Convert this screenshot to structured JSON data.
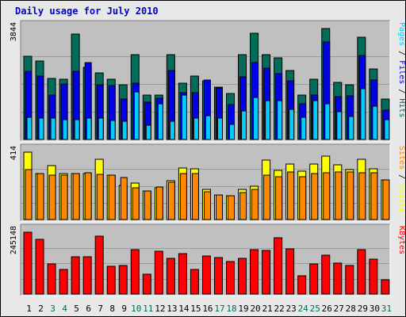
{
  "title": "Daily usage for July 2010",
  "colors": {
    "hits": "#006c5a",
    "files": "#0000e6",
    "pages": "#00ccff",
    "visits": "#ffff00",
    "sites": "#ff8800",
    "kbytes": "#ff0000",
    "day_label": "#000000",
    "weekend_label": "#006c5a",
    "panel_bg": "#c0c0c0"
  },
  "chart_data": {
    "type": "bar",
    "x": [
      "1",
      "2",
      "3",
      "4",
      "5",
      "6",
      "7",
      "8",
      "9",
      "10",
      "11",
      "12",
      "13",
      "14",
      "15",
      "16",
      "17",
      "18",
      "19",
      "20",
      "21",
      "22",
      "23",
      "24",
      "25",
      "26",
      "27",
      "28",
      "29",
      "30",
      "31"
    ],
    "weekend_days": [
      "3",
      "4",
      "10",
      "11",
      "17",
      "18",
      "24",
      "25",
      "31"
    ],
    "panels": [
      {
        "name": "Pages / Files / Hits",
        "ymax_label": "3844",
        "ymax": 3844,
        "legend": [
          {
            "text": "Pages",
            "color_key": "pages"
          },
          {
            "text": " / ",
            "color_key": "day_label"
          },
          {
            "text": "Files",
            "color_key": "files"
          },
          {
            "text": " / ",
            "color_key": "day_label"
          },
          {
            "text": "Hits",
            "color_key": "hits"
          }
        ],
        "series": [
          {
            "name": "Hits",
            "color_key": "hits",
            "values": [
              2874,
              2724,
              2124,
              2074,
              3644,
              2499,
              2299,
              2099,
              1899,
              2949,
              1549,
              1549,
              2949,
              1949,
              2199,
              2024,
              1824,
              1599,
              2949,
              3674,
              2949,
              2824,
              2399,
              1549,
              2074,
              3844,
              1974,
              1899,
              3544,
              2449,
              1399
            ]
          },
          {
            "name": "Files",
            "color_key": "files",
            "values": [
              2349,
              2199,
              1524,
              1924,
              2349,
              2674,
              1899,
              1874,
              1399,
              1949,
              1299,
              1424,
              2399,
              1624,
              1624,
              2049,
              1774,
              1199,
              2174,
              2674,
              2474,
              2274,
              2024,
              1249,
              1524,
              3374,
              1474,
              1499,
              2924,
              2049,
              1024
            ]
          },
          {
            "name": "Pages",
            "color_key": "pages",
            "values": [
              774,
              749,
              749,
              699,
              674,
              749,
              749,
              649,
              624,
              1649,
              499,
              1249,
              624,
              1549,
              749,
              824,
              749,
              524,
              999,
              1449,
              1349,
              1349,
              1049,
              774,
              1349,
              1249,
              949,
              799,
              1749,
              1149,
              674
            ]
          }
        ]
      },
      {
        "name": "Sites / Visits",
        "ymax_label": "414",
        "ymax": 414,
        "legend": [
          {
            "text": "Sites",
            "color_key": "sites"
          },
          {
            "text": " / ",
            "color_key": "day_label"
          },
          {
            "text": "Visits",
            "color_key": "visits"
          }
        ],
        "series": [
          {
            "name": "Visits",
            "color_key": "visits",
            "values": [
              414,
              284,
              329,
              284,
              284,
              284,
              369,
              274,
              209,
              224,
              174,
              194,
              239,
              319,
              314,
              184,
              149,
              144,
              184,
              204,
              364,
              304,
              339,
              299,
              339,
              389,
              334,
              309,
              369,
              314,
              244
            ]
          },
          {
            "name": "Sites",
            "color_key": "sites",
            "values": [
              309,
              284,
              274,
              274,
              284,
              289,
              279,
              274,
              259,
              194,
              174,
              199,
              229,
              284,
              284,
              169,
              149,
              144,
              164,
              184,
              274,
              264,
              294,
              264,
              284,
              289,
              294,
              294,
              289,
              289,
              244
            ]
          }
        ]
      },
      {
        "name": "KBytes",
        "ymax_label": "245148",
        "ymax": 245148,
        "legend": [
          {
            "text": "KBytes",
            "color_key": "kbytes"
          }
        ],
        "series": [
          {
            "name": "KBytes",
            "color_key": "kbytes",
            "values": [
              245148,
              218000,
              118000,
              96000,
              148000,
              148000,
              231000,
              110000,
              112000,
              177000,
              80000,
              171000,
              142000,
              160000,
              99000,
              150000,
              144000,
              128000,
              143000,
              175000,
              173000,
              222000,
              180000,
              73000,
              120000,
              155000,
              122000,
              112000,
              176000,
              138000,
              58000
            ]
          }
        ]
      }
    ]
  }
}
